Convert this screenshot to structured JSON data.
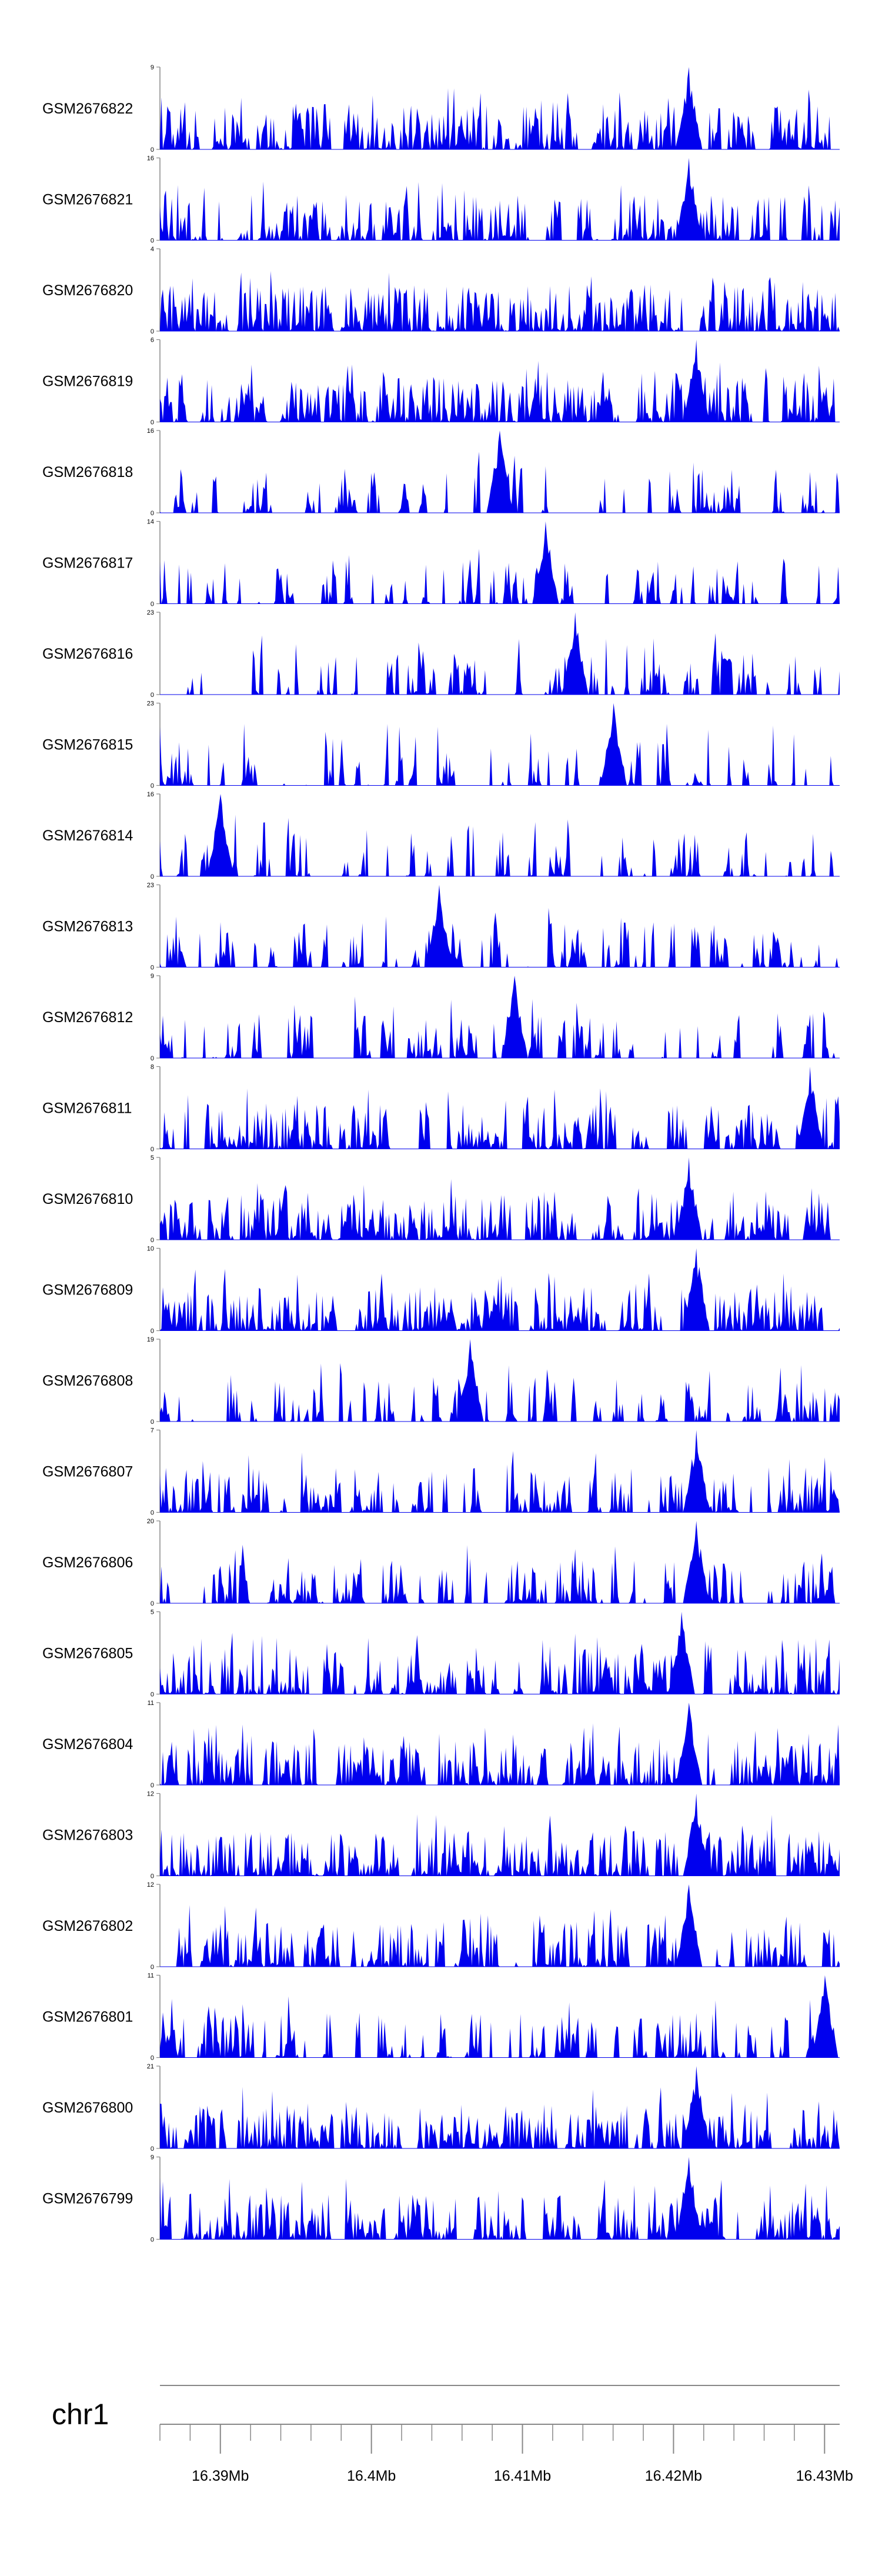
{
  "chart_data": {
    "type": "area",
    "fill_color": "#0000ee",
    "axis_color": "#888888",
    "chromosome": "chr1",
    "x_range_mb": [
      16.386,
      16.431
    ],
    "x_major_ticks": [
      16.39,
      16.4,
      16.41,
      16.42,
      16.43
    ],
    "x_tick_labels": [
      "16.39Mb",
      "16.4Mb",
      "16.41Mb",
      "16.42Mb",
      "16.43Mb"
    ],
    "x_minor_tick_step_mb": 0.002,
    "tracks": [
      {
        "name": "GSM2676822",
        "ymin": 0,
        "ymax": 9,
        "ymin_label": "0",
        "ymax_label": "9",
        "seed": 22,
        "density": 0.9,
        "peak_mb": 16.421
      },
      {
        "name": "GSM2676821",
        "ymin": 0,
        "ymax": 16,
        "ymin_label": "0",
        "ymax_label": "16",
        "seed": 21,
        "density": 0.8,
        "peak_mb": 16.421
      },
      {
        "name": "GSM2676820",
        "ymin": 0,
        "ymax": 4,
        "ymin_label": "0",
        "ymax_label": "4",
        "seed": 20,
        "density": 0.97,
        "peak_mb": null
      },
      {
        "name": "GSM2676819",
        "ymin": 0,
        "ymax": 6,
        "ymin_label": "0",
        "ymax_label": "6",
        "seed": 19,
        "density": 0.95,
        "peak_mb": 16.4215
      },
      {
        "name": "GSM2676818",
        "ymin": 0,
        "ymax": 16,
        "ymin_label": "0",
        "ymax_label": "16",
        "seed": 18,
        "density": 0.55,
        "peak_mb": 16.4085
      },
      {
        "name": "GSM2676817",
        "ymin": 0,
        "ymax": 14,
        "ymin_label": "0",
        "ymax_label": "14",
        "seed": 17,
        "density": 0.5,
        "peak_mb": 16.4115
      },
      {
        "name": "GSM2676816",
        "ymin": 0,
        "ymax": 23,
        "ymin_label": "0",
        "ymax_label": "23",
        "seed": 16,
        "density": 0.5,
        "peak_mb": 16.4135
      },
      {
        "name": "GSM2676815",
        "ymin": 0,
        "ymax": 23,
        "ymin_label": "0",
        "ymax_label": "23",
        "seed": 15,
        "density": 0.4,
        "peak_mb": 16.416
      },
      {
        "name": "GSM2676814",
        "ymin": 0,
        "ymax": 16,
        "ymin_label": "0",
        "ymax_label": "16",
        "seed": 14,
        "density": 0.55,
        "peak_mb": 16.39
      },
      {
        "name": "GSM2676813",
        "ymin": 0,
        "ymax": 23,
        "ymin_label": "0",
        "ymax_label": "23",
        "seed": 13,
        "density": 0.45,
        "peak_mb": 16.4045
      },
      {
        "name": "GSM2676812",
        "ymin": 0,
        "ymax": 9,
        "ymin_label": "0",
        "ymax_label": "9",
        "seed": 12,
        "density": 0.75,
        "peak_mb": 16.4095
      },
      {
        "name": "GSM2676811",
        "ymin": 0,
        "ymax": 8,
        "ymin_label": "0",
        "ymax_label": "8",
        "seed": 11,
        "density": 0.9,
        "peak_mb": 16.429
      },
      {
        "name": "GSM2676810",
        "ymin": 0,
        "ymax": 5,
        "ymin_label": "0",
        "ymax_label": "5",
        "seed": 10,
        "density": 0.92,
        "peak_mb": 16.421
      },
      {
        "name": "GSM2676809",
        "ymin": 0,
        "ymax": 10,
        "ymin_label": "0",
        "ymax_label": "10",
        "seed": 9,
        "density": 0.92,
        "peak_mb": 16.4215
      },
      {
        "name": "GSM2676808",
        "ymin": 0,
        "ymax": 19,
        "ymin_label": "0",
        "ymax_label": "19",
        "seed": 8,
        "density": 0.55,
        "peak_mb": 16.4065
      },
      {
        "name": "GSM2676807",
        "ymin": 0,
        "ymax": 7,
        "ymin_label": "0",
        "ymax_label": "7",
        "seed": 7,
        "density": 0.9,
        "peak_mb": 16.4215
      },
      {
        "name": "GSM2676806",
        "ymin": 0,
        "ymax": 20,
        "ymin_label": "0",
        "ymax_label": "20",
        "seed": 6,
        "density": 0.85,
        "peak_mb": 16.4215
      },
      {
        "name": "GSM2676805",
        "ymin": 0,
        "ymax": 5,
        "ymin_label": "0",
        "ymax_label": "5",
        "seed": 5,
        "density": 0.92,
        "peak_mb": 16.4205
      },
      {
        "name": "GSM2676804",
        "ymin": 0,
        "ymax": 11,
        "ymin_label": "0",
        "ymax_label": "11",
        "seed": 4,
        "density": 0.92,
        "peak_mb": 16.421
      },
      {
        "name": "GSM2676803",
        "ymin": 0,
        "ymax": 12,
        "ymin_label": "0",
        "ymax_label": "12",
        "seed": 3,
        "density": 0.92,
        "peak_mb": 16.4215
      },
      {
        "name": "GSM2676802",
        "ymin": 0,
        "ymax": 12,
        "ymin_label": "0",
        "ymax_label": "12",
        "seed": 2,
        "density": 0.9,
        "peak_mb": 16.421
      },
      {
        "name": "GSM2676801",
        "ymin": 0,
        "ymax": 11,
        "ymin_label": "0",
        "ymax_label": "11",
        "seed": 1,
        "density": 0.7,
        "peak_mb": 16.43
      },
      {
        "name": "GSM2676800",
        "ymin": 0,
        "ymax": 21,
        "ymin_label": "0",
        "ymax_label": "21",
        "seed": 30,
        "density": 0.9,
        "peak_mb": 16.4215
      },
      {
        "name": "GSM2676799",
        "ymin": 0,
        "ymax": 9,
        "ymin_label": "0",
        "ymax_label": "9",
        "seed": 31,
        "density": 0.95,
        "peak_mb": 16.421
      }
    ]
  }
}
